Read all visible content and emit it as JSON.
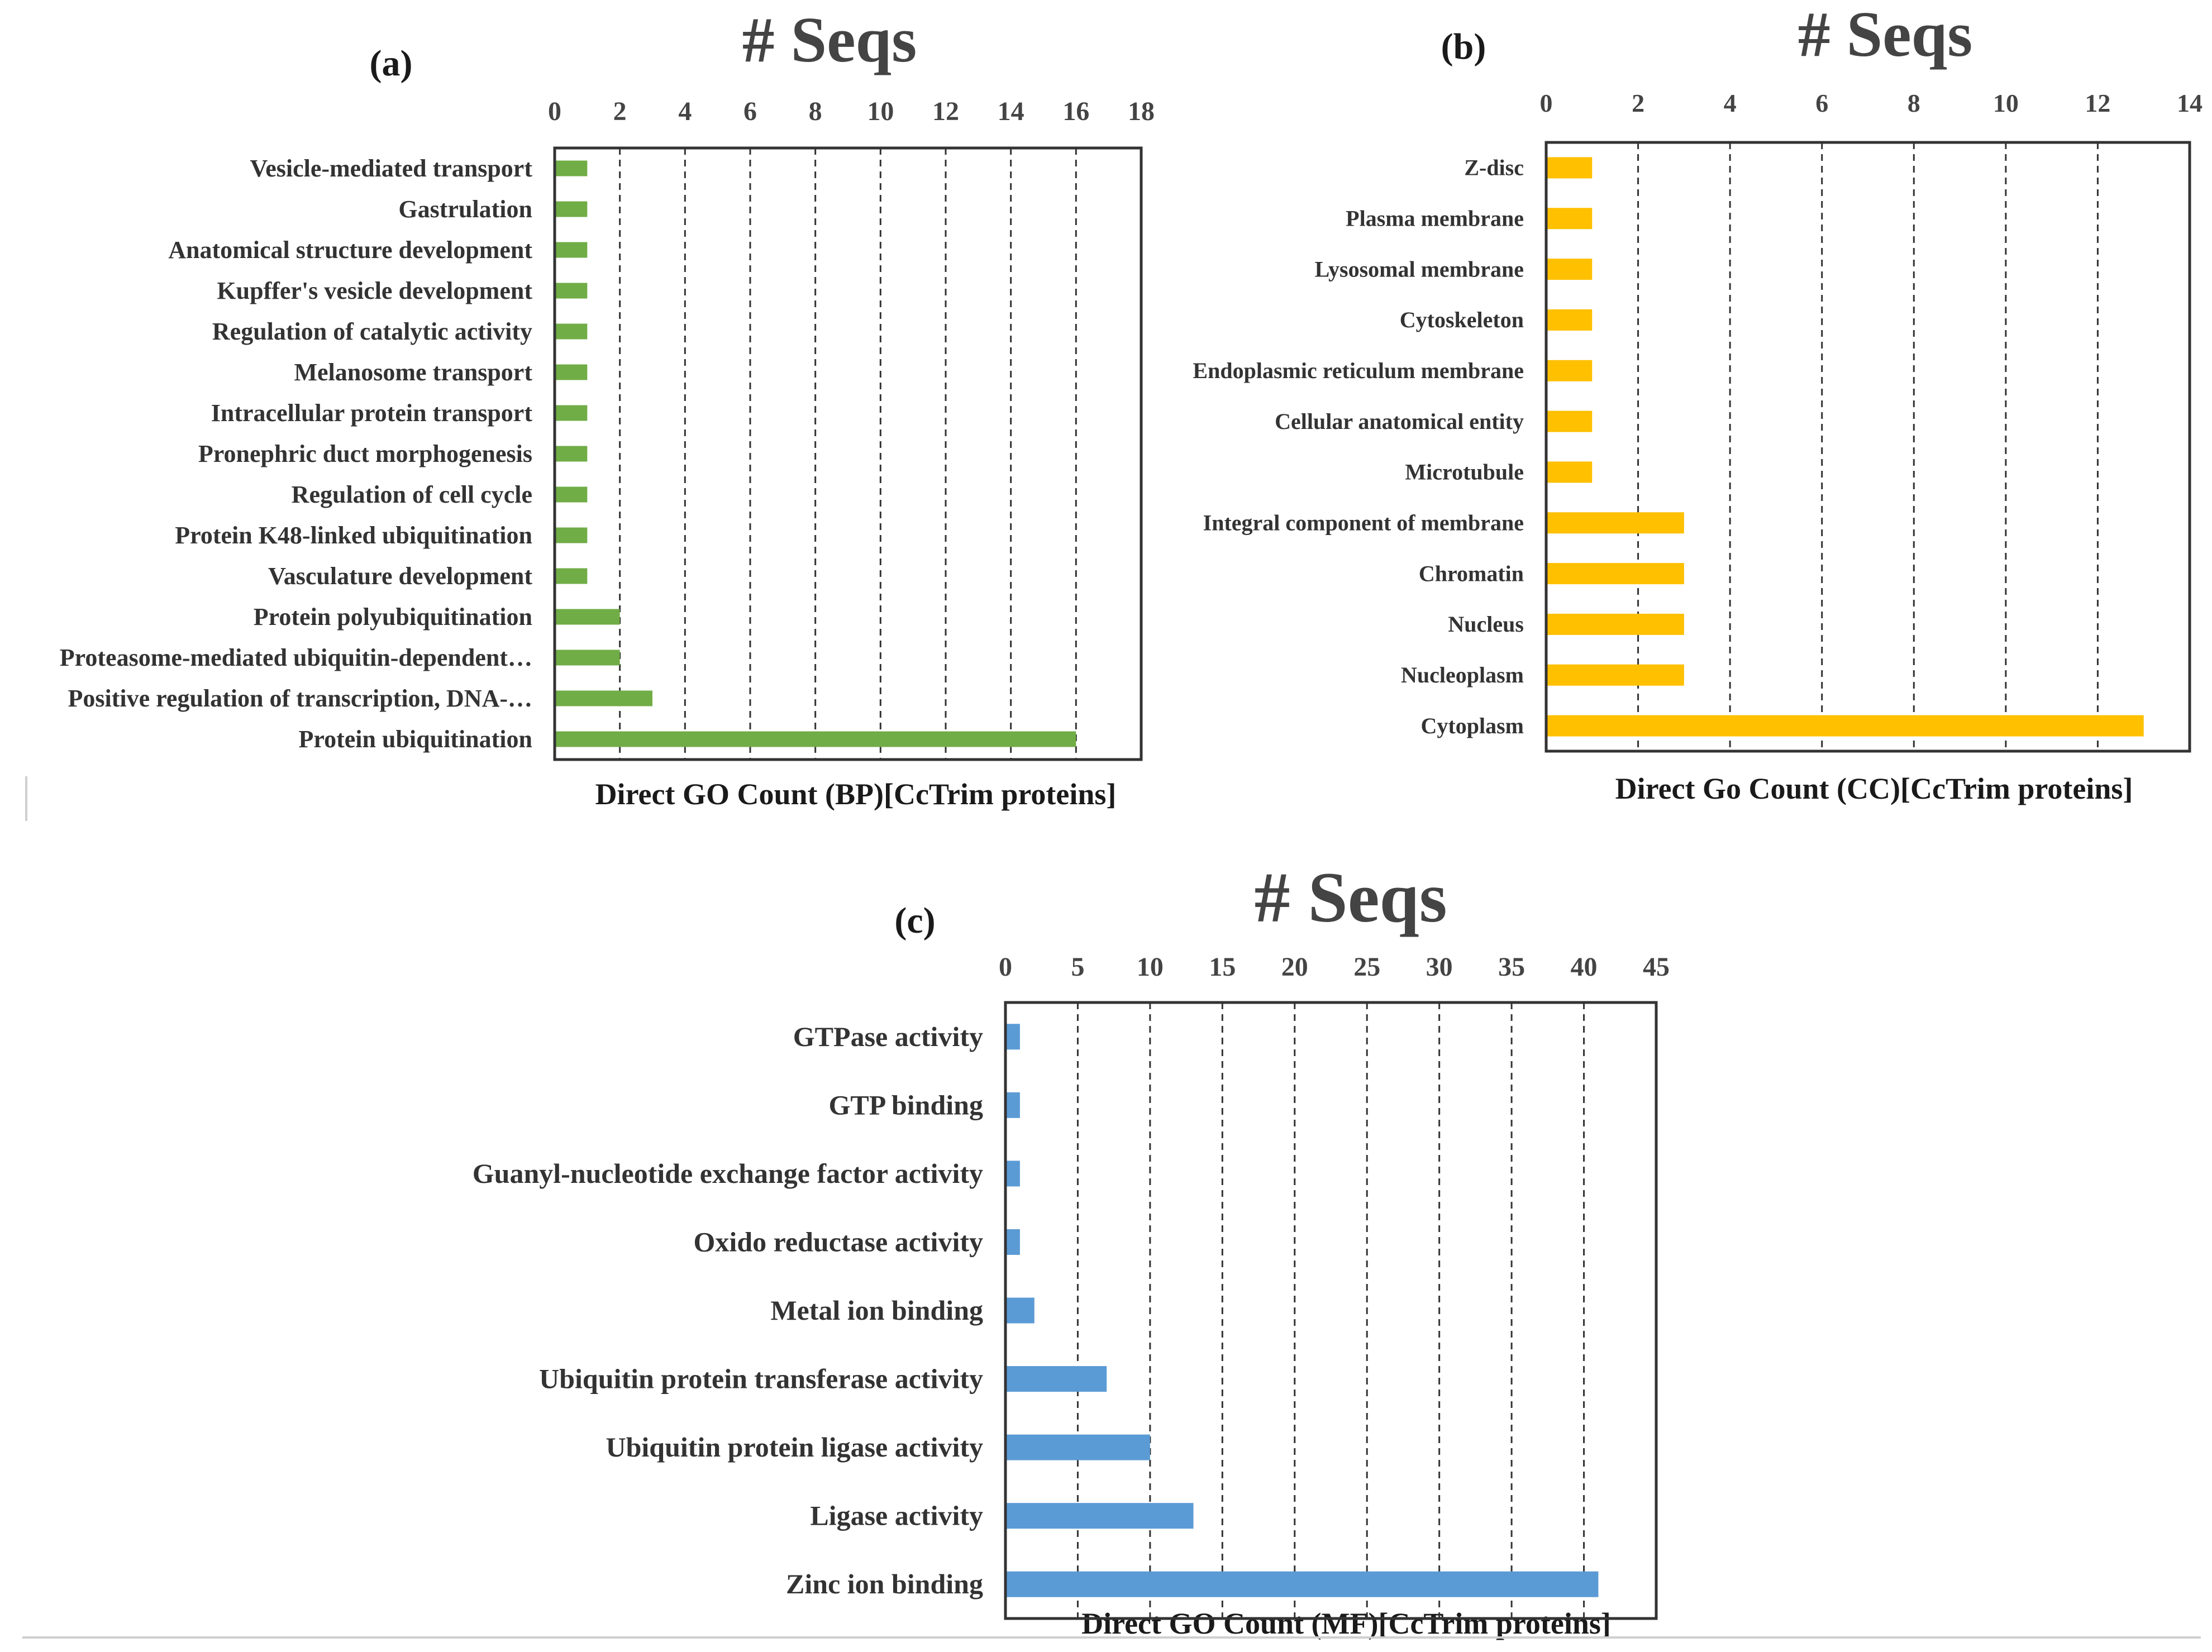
{
  "colors": {
    "bp_bar": "#70ad47",
    "cc_bar": "#ffc000",
    "mf_bar": "#5b9bd5",
    "frame": "#333333",
    "grid": "#333333",
    "text": "#1a1a1a"
  },
  "chart_data": [
    {
      "type": "bar",
      "orientation": "horizontal",
      "panel_label": "(a)",
      "title": "# Seqs",
      "xlabel": "Direct GO Count (BP)[CcTrim proteins]",
      "xlim": [
        0,
        18
      ],
      "xticks": [
        "0",
        "2",
        "4",
        "6",
        "8",
        "10",
        "12",
        "14",
        "16",
        "18"
      ],
      "tick_values": [
        0,
        2,
        4,
        6,
        8,
        10,
        12,
        14,
        16,
        18
      ],
      "grid": "vertical dashed",
      "categories": [
        "Vesicle-mediated transport",
        "Gastrulation",
        "Anatomical structure development",
        "Kupffer's vesicle development",
        "Regulation of catalytic activity",
        "Melanosome transport",
        "Intracellular protein transport",
        "Pronephric duct morphogenesis",
        "Regulation of cell cycle",
        "Protein K48-linked ubiquitination",
        "Vasculature development",
        "Protein polyubiquitination",
        "Proteasome-mediated ubiquitin-dependent…",
        "Positive regulation of transcription, DNA-…",
        "Protein ubiquitination"
      ],
      "values": [
        1,
        1,
        1,
        1,
        1,
        1,
        1,
        1,
        1,
        1,
        1,
        2,
        2,
        3,
        16
      ]
    },
    {
      "type": "bar",
      "orientation": "horizontal",
      "panel_label": "(b)",
      "title": "# Seqs",
      "xlabel": "Direct Go Count (CC)[CcTrim proteins]",
      "xlim": [
        0,
        14
      ],
      "xticks": [
        "0",
        "2",
        "4",
        "6",
        "8",
        "10",
        "12",
        "14"
      ],
      "tick_values": [
        0,
        2,
        4,
        6,
        8,
        10,
        12,
        14
      ],
      "grid": "vertical dashed",
      "categories": [
        "Z-disc",
        "Plasma membrane",
        "Lysosomal membrane",
        "Cytoskeleton",
        "Endoplasmic reticulum membrane",
        "Cellular anatomical entity",
        "Microtubule",
        "Integral component of membrane",
        "Chromatin",
        "Nucleus",
        "Nucleoplasm",
        "Cytoplasm"
      ],
      "values": [
        1,
        1,
        1,
        1,
        1,
        1,
        1,
        3,
        3,
        3,
        3,
        13
      ]
    },
    {
      "type": "bar",
      "orientation": "horizontal",
      "panel_label": "(c)",
      "title": "# Seqs",
      "xlabel": "Direct GO Count (MF)[CcTrim proteins]",
      "xlim": [
        0,
        45
      ],
      "xticks": [
        "0",
        "5",
        "10",
        "15",
        "20",
        "25",
        "30",
        "35",
        "40",
        "45"
      ],
      "tick_values": [
        0,
        5,
        10,
        15,
        20,
        25,
        30,
        35,
        40,
        45
      ],
      "grid": "vertical dashed",
      "categories": [
        "GTPase activity",
        "GTP binding",
        "Guanyl-nucleotide exchange factor activity",
        "Oxido reductase activity",
        "Metal ion binding",
        "Ubiquitin protein transferase activity",
        "Ubiquitin protein ligase activity",
        "Ligase activity",
        "Zinc ion binding"
      ],
      "values": [
        1,
        1,
        1,
        1,
        2,
        7,
        10,
        13,
        41
      ]
    }
  ]
}
